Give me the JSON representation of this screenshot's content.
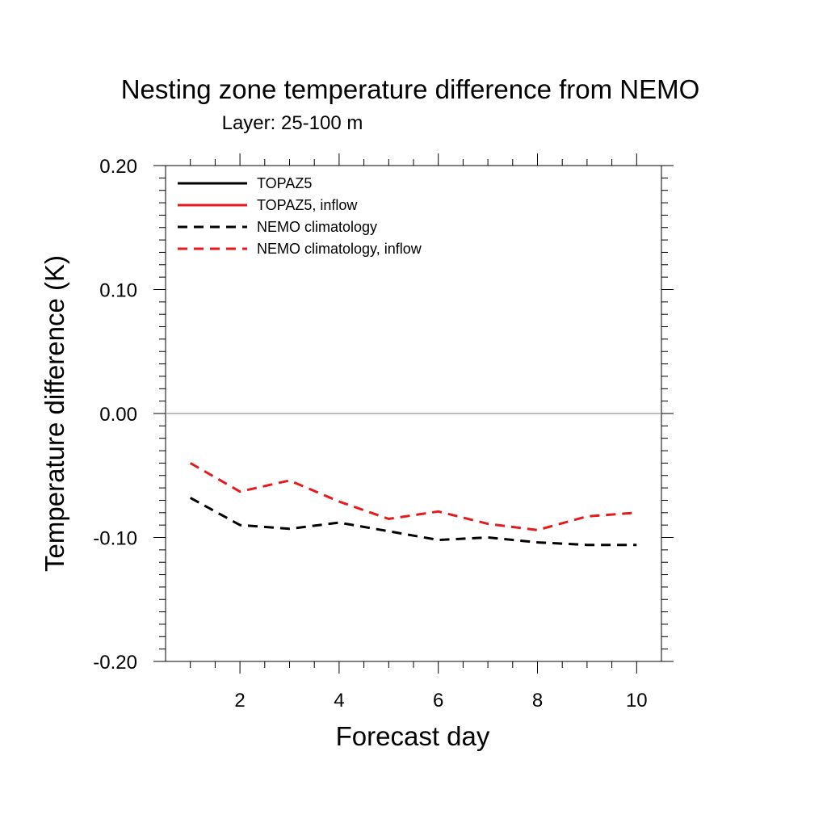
{
  "chart_data": {
    "type": "line",
    "title": "Nesting zone temperature difference from NEMO",
    "subtitle": "Layer: 25-100 m",
    "xlabel": "Forecast day",
    "ylabel": "Temperature difference (K)",
    "xlim": [
      0.5,
      10.5
    ],
    "ylim": [
      -0.2,
      0.2
    ],
    "xticks": [
      2,
      4,
      6,
      8,
      10
    ],
    "xtick_labels": [
      "2",
      "4",
      "6",
      "8",
      "10"
    ],
    "yticks": [
      -0.2,
      -0.1,
      0.0,
      0.1,
      0.2
    ],
    "ytick_labels": [
      "-0.20",
      "-0.10",
      "0.00",
      "0.10",
      "0.20"
    ],
    "reference_line": 0.0,
    "legend_position": "top-left",
    "series": [
      {
        "name": "TOPAZ5",
        "color": "#000000",
        "dash": "solid",
        "x": [],
        "y": []
      },
      {
        "name": "TOPAZ5, inflow",
        "color": "#e41a1c",
        "dash": "solid",
        "x": [],
        "y": []
      },
      {
        "name": "NEMO climatology",
        "color": "#000000",
        "dash": "dashed",
        "x": [
          1,
          2,
          3,
          4,
          5,
          6,
          7,
          8,
          9,
          10
        ],
        "y": [
          -0.068,
          -0.09,
          -0.093,
          -0.088,
          -0.095,
          -0.102,
          -0.1,
          -0.104,
          -0.106,
          -0.106
        ]
      },
      {
        "name": "NEMO climatology, inflow",
        "color": "#e41a1c",
        "dash": "dashed",
        "x": [
          1,
          2,
          3,
          4,
          5,
          6,
          7,
          8,
          9,
          10
        ],
        "y": [
          -0.04,
          -0.063,
          -0.054,
          -0.071,
          -0.085,
          -0.079,
          -0.089,
          -0.094,
          -0.083,
          -0.08
        ]
      }
    ]
  }
}
